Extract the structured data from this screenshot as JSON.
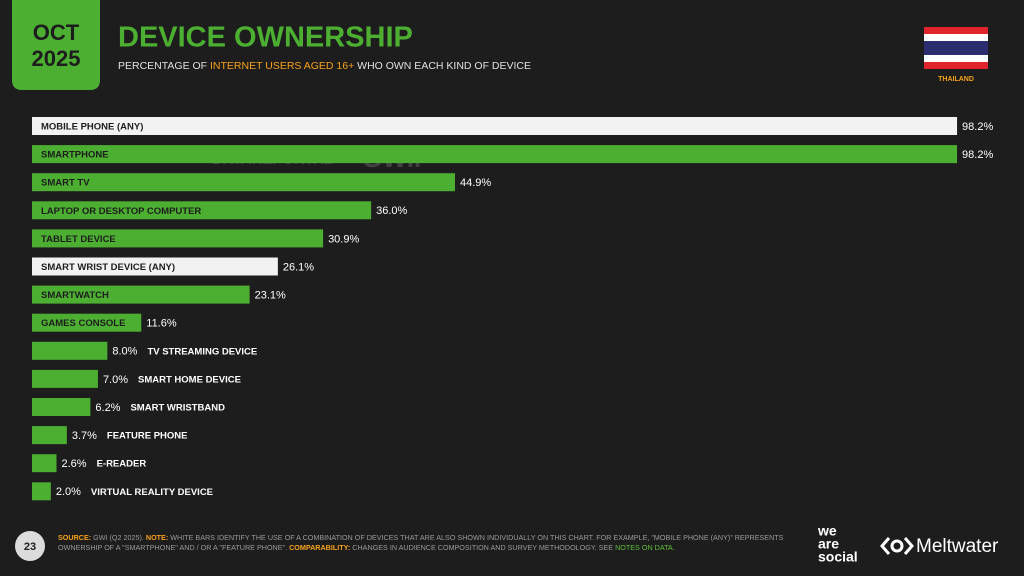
{
  "header": {
    "month": "OCT",
    "year": "2025",
    "country": "THAILAND"
  },
  "chart_data": {
    "type": "bar",
    "title": "DEVICE OWNERSHIP",
    "subtitle": {
      "before": "PERCENTAGE OF",
      "highlight": "INTERNET USERS AGED 16+",
      "after": "WHO OWN EACH KIND OF DEVICE"
    },
    "categories": [
      "MOBILE PHONE (ANY)",
      "SMARTPHONE",
      "SMART TV",
      "LAPTOP OR DESKTOP COMPUTER",
      "TABLET DEVICE",
      "SMART WRIST DEVICE (ANY)",
      "SMARTWATCH",
      "GAMES CONSOLE",
      "TV STREAMING DEVICE",
      "SMART HOME DEVICE",
      "SMART WRISTBAND",
      "FEATURE PHONE",
      "E-READER",
      "VIRTUAL REALITY DEVICE"
    ],
    "values": [
      98.2,
      98.2,
      44.9,
      36.0,
      30.9,
      26.1,
      23.1,
      11.6,
      8.0,
      7.0,
      6.2,
      3.7,
      2.6,
      2.0
    ],
    "value_labels": [
      "98.2%",
      "98.2%",
      "44.9%",
      "36.0%",
      "30.9%",
      "26.1%",
      "23.1%",
      "11.6%",
      "8.0%",
      "7.0%",
      "6.2%",
      "3.7%",
      "2.6%",
      "2.0%"
    ],
    "colors": [
      "#f2f2f2",
      "#4caf32",
      "#4caf32",
      "#4caf32",
      "#4caf32",
      "#f2f2f2",
      "#4caf32",
      "#4caf32",
      "#4caf32",
      "#4caf32",
      "#4caf32",
      "#4caf32",
      "#4caf32",
      "#4caf32"
    ],
    "xlim": [
      0,
      100
    ]
  },
  "watermarks": [
    "DATAREPORTAL",
    "GWI."
  ],
  "page_number": "23",
  "footer": {
    "source_label": "SOURCE:",
    "source": "GWI (Q2 2025).",
    "note_label": "NOTE:",
    "note": "WHITE BARS IDENTIFY THE USE OF A COMBINATION OF DEVICES THAT ARE ALSO SHOWN INDIVIDUALLY ON THIS CHART. FOR EXAMPLE, \"MOBILE PHONE (ANY)\" REPRESENTS OWNERSHIP OF A \"SMARTPHONE\" AND / OR A \"FEATURE PHONE\".",
    "comparability_label": "COMPARABILITY:",
    "comparability": "CHANGES IN AUDIENCE COMPOSITION AND SURVEY METHODOLOGY. SEE",
    "notes_link": "NOTES ON DATA."
  },
  "logos": {
    "we_are_social": [
      "we",
      "are",
      "social"
    ],
    "meltwater": "Meltwater"
  }
}
